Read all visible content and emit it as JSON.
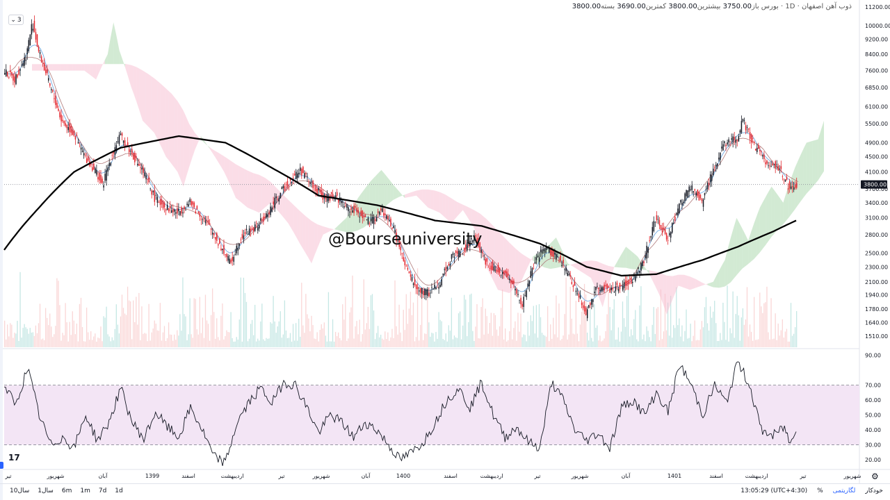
{
  "legend": {
    "symbol": "ذوب آهن اصفهان",
    "interval": "1D",
    "exchange": "بورس",
    "open_label": "باز",
    "open": "3750.00",
    "high_label": "بیشترین",
    "high": "3800.00",
    "low_label": "کمترین",
    "low": "3690.00",
    "close_label": "بسته",
    "close": "3800.00"
  },
  "indicator_toggle": "3",
  "watermark": "@Bourseuniversity",
  "logo": "17",
  "bottom_bar": {
    "ranges": [
      "10سال",
      "1سال",
      "6m",
      "1m",
      "7d",
      "1d"
    ],
    "time": "13:05:29 (UTC+4:30)",
    "percent": "%",
    "log": "لگاریتمی",
    "auto": "خودکار"
  },
  "colors": {
    "up": "#131722",
    "down": "#e3242b",
    "ma": "#000000",
    "kumo_bull": "#a5d6a7",
    "kumo_bear": "#f8bbd0",
    "rsi_band": "#f3e5f5",
    "current_price": "#131722"
  },
  "chart_data": [
    {
      "type": "candlestick",
      "price_axis_ticks": [
        "11200.00",
        "10000.00",
        "9200.00",
        "8400.00",
        "7600.00",
        "6850.00",
        "6100.00",
        "5500.00",
        "4900.00",
        "4500.00",
        "4100.00",
        "3700.00",
        "3400.00",
        "3100.00",
        "2800.00",
        "2500.00",
        "2300.00",
        "2100.00",
        "1940.00",
        "1780.00",
        "1640.00",
        "1510.00"
      ],
      "price_axis_values": [
        11200,
        10000,
        9200,
        8400,
        7600,
        6850,
        6100,
        5500,
        4900,
        4500,
        4100,
        3700,
        3400,
        3100,
        2800,
        2500,
        2300,
        2100,
        1940,
        1780,
        1640,
        1510
      ],
      "scale": "log",
      "current_price": 3800,
      "current_price_label": "3800.00",
      "x_ticks": [
        "تیر",
        "شهریور",
        "آبان",
        "1399",
        "اسفند",
        "اردیبهشت",
        "تیر",
        "شهریور",
        "آبان",
        "1400",
        "اسفند",
        "اردیبهشت",
        "تیر",
        "شهریور",
        "آبان",
        "1401",
        "اسفند",
        "اردیبهشت",
        "تیر",
        "شهریور"
      ],
      "price_path": [
        {
          "t": 0,
          "p": 7600
        },
        {
          "t": 2,
          "p": 7200
        },
        {
          "t": 4,
          "p": 8400
        },
        {
          "t": 5,
          "p": 10200
        },
        {
          "t": 6,
          "p": 8600
        },
        {
          "t": 8,
          "p": 6900
        },
        {
          "t": 10,
          "p": 5600
        },
        {
          "t": 12,
          "p": 5200
        },
        {
          "t": 14,
          "p": 4500
        },
        {
          "t": 16,
          "p": 4100
        },
        {
          "t": 17,
          "p": 3750
        },
        {
          "t": 19,
          "p": 4700
        },
        {
          "t": 20,
          "p": 5100
        },
        {
          "t": 22,
          "p": 4600
        },
        {
          "t": 24,
          "p": 4100
        },
        {
          "t": 26,
          "p": 3500
        },
        {
          "t": 28,
          "p": 3300
        },
        {
          "t": 30,
          "p": 3200
        },
        {
          "t": 32,
          "p": 3400
        },
        {
          "t": 35,
          "p": 3000
        },
        {
          "t": 37,
          "p": 2650
        },
        {
          "t": 39,
          "p": 2350
        },
        {
          "t": 41,
          "p": 2800
        },
        {
          "t": 43,
          "p": 2900
        },
        {
          "t": 45,
          "p": 3100
        },
        {
          "t": 47,
          "p": 3500
        },
        {
          "t": 49,
          "p": 3850
        },
        {
          "t": 51,
          "p": 4150
        },
        {
          "t": 53,
          "p": 3800
        },
        {
          "t": 55,
          "p": 3500
        },
        {
          "t": 57,
          "p": 3550
        },
        {
          "t": 59,
          "p": 3300
        },
        {
          "t": 61,
          "p": 3200
        },
        {
          "t": 63,
          "p": 3000
        },
        {
          "t": 65,
          "p": 3250
        },
        {
          "t": 67,
          "p": 2900
        },
        {
          "t": 69,
          "p": 2300
        },
        {
          "t": 71,
          "p": 2000
        },
        {
          "t": 73,
          "p": 1960
        },
        {
          "t": 75,
          "p": 2100
        },
        {
          "t": 77,
          "p": 2450
        },
        {
          "t": 79,
          "p": 2550
        },
        {
          "t": 81,
          "p": 2750
        },
        {
          "t": 83,
          "p": 2350
        },
        {
          "t": 85,
          "p": 2250
        },
        {
          "t": 87,
          "p": 2150
        },
        {
          "t": 89,
          "p": 1800
        },
        {
          "t": 91,
          "p": 2300
        },
        {
          "t": 93,
          "p": 2600
        },
        {
          "t": 95,
          "p": 2450
        },
        {
          "t": 97,
          "p": 2200
        },
        {
          "t": 99,
          "p": 1900
        },
        {
          "t": 100,
          "p": 1720
        },
        {
          "t": 102,
          "p": 2050
        },
        {
          "t": 104,
          "p": 2000
        },
        {
          "t": 106,
          "p": 2050
        },
        {
          "t": 108,
          "p": 2100
        },
        {
          "t": 110,
          "p": 2400
        },
        {
          "t": 112,
          "p": 3100
        },
        {
          "t": 114,
          "p": 2700
        },
        {
          "t": 116,
          "p": 3300
        },
        {
          "t": 118,
          "p": 3750
        },
        {
          "t": 120,
          "p": 3400
        },
        {
          "t": 122,
          "p": 4200
        },
        {
          "t": 124,
          "p": 4900
        },
        {
          "t": 126,
          "p": 5000
        },
        {
          "t": 127,
          "p": 5600
        },
        {
          "t": 129,
          "p": 4800
        },
        {
          "t": 131,
          "p": 4350
        },
        {
          "t": 133,
          "p": 4250
        },
        {
          "t": 135,
          "p": 3700
        },
        {
          "t": 136,
          "p": 3800
        }
      ],
      "ma_path": [
        {
          "t": 0,
          "p": 2550
        },
        {
          "t": 6,
          "p": 3300
        },
        {
          "t": 12,
          "p": 4100
        },
        {
          "t": 20,
          "p": 4750
        },
        {
          "t": 30,
          "p": 5100
        },
        {
          "t": 38,
          "p": 4900
        },
        {
          "t": 46,
          "p": 4200
        },
        {
          "t": 54,
          "p": 3550
        },
        {
          "t": 64,
          "p": 3350
        },
        {
          "t": 74,
          "p": 3050
        },
        {
          "t": 82,
          "p": 2950
        },
        {
          "t": 92,
          "p": 2650
        },
        {
          "t": 100,
          "p": 2300
        },
        {
          "t": 106,
          "p": 2180
        },
        {
          "t": 112,
          "p": 2200
        },
        {
          "t": 120,
          "p": 2400
        },
        {
          "t": 126,
          "p": 2600
        },
        {
          "t": 132,
          "p": 2850
        },
        {
          "t": 136,
          "p": 3050
        }
      ]
    },
    {
      "type": "line",
      "name": "",
      "y_axis_ticks": [
        "90.00",
        "70.00",
        "60.00",
        "50.00",
        "40.00",
        "30.00",
        "20.00"
      ],
      "y_axis_values": [
        90,
        70,
        60,
        50,
        40,
        30,
        20
      ],
      "ylim": [
        14,
        94
      ],
      "band": [
        30,
        70
      ],
      "path": [
        {
          "t": 0,
          "p": 70
        },
        {
          "t": 2,
          "p": 56
        },
        {
          "t": 4,
          "p": 82
        },
        {
          "t": 6,
          "p": 50
        },
        {
          "t": 8,
          "p": 30
        },
        {
          "t": 10,
          "p": 35
        },
        {
          "t": 12,
          "p": 28
        },
        {
          "t": 14,
          "p": 50
        },
        {
          "t": 16,
          "p": 33
        },
        {
          "t": 18,
          "p": 45
        },
        {
          "t": 20,
          "p": 68
        },
        {
          "t": 22,
          "p": 45
        },
        {
          "t": 24,
          "p": 34
        },
        {
          "t": 26,
          "p": 52
        },
        {
          "t": 28,
          "p": 42
        },
        {
          "t": 30,
          "p": 35
        },
        {
          "t": 32,
          "p": 55
        },
        {
          "t": 34,
          "p": 40
        },
        {
          "t": 36,
          "p": 22
        },
        {
          "t": 38,
          "p": 18
        },
        {
          "t": 40,
          "p": 45
        },
        {
          "t": 42,
          "p": 58
        },
        {
          "t": 44,
          "p": 68
        },
        {
          "t": 46,
          "p": 58
        },
        {
          "t": 48,
          "p": 72
        },
        {
          "t": 50,
          "p": 70
        },
        {
          "t": 52,
          "p": 55
        },
        {
          "t": 54,
          "p": 38
        },
        {
          "t": 56,
          "p": 50
        },
        {
          "t": 58,
          "p": 45
        },
        {
          "t": 60,
          "p": 35
        },
        {
          "t": 62,
          "p": 45
        },
        {
          "t": 64,
          "p": 40
        },
        {
          "t": 66,
          "p": 30
        },
        {
          "t": 68,
          "p": 20
        },
        {
          "t": 70,
          "p": 25
        },
        {
          "t": 72,
          "p": 32
        },
        {
          "t": 74,
          "p": 45
        },
        {
          "t": 76,
          "p": 60
        },
        {
          "t": 78,
          "p": 68
        },
        {
          "t": 80,
          "p": 55
        },
        {
          "t": 82,
          "p": 72
        },
        {
          "t": 84,
          "p": 50
        },
        {
          "t": 86,
          "p": 35
        },
        {
          "t": 88,
          "p": 42
        },
        {
          "t": 90,
          "p": 32
        },
        {
          "t": 92,
          "p": 28
        },
        {
          "t": 94,
          "p": 72
        },
        {
          "t": 96,
          "p": 60
        },
        {
          "t": 98,
          "p": 40
        },
        {
          "t": 100,
          "p": 33
        },
        {
          "t": 102,
          "p": 38
        },
        {
          "t": 104,
          "p": 28
        },
        {
          "t": 106,
          "p": 55
        },
        {
          "t": 108,
          "p": 60
        },
        {
          "t": 110,
          "p": 50
        },
        {
          "t": 112,
          "p": 65
        },
        {
          "t": 114,
          "p": 52
        },
        {
          "t": 116,
          "p": 84
        },
        {
          "t": 118,
          "p": 70
        },
        {
          "t": 120,
          "p": 50
        },
        {
          "t": 122,
          "p": 70
        },
        {
          "t": 124,
          "p": 58
        },
        {
          "t": 126,
          "p": 86
        },
        {
          "t": 128,
          "p": 70
        },
        {
          "t": 130,
          "p": 40
        },
        {
          "t": 132,
          "p": 36
        },
        {
          "t": 134,
          "p": 42
        },
        {
          "t": 135,
          "p": 30
        },
        {
          "t": 136,
          "p": 42
        }
      ]
    }
  ]
}
